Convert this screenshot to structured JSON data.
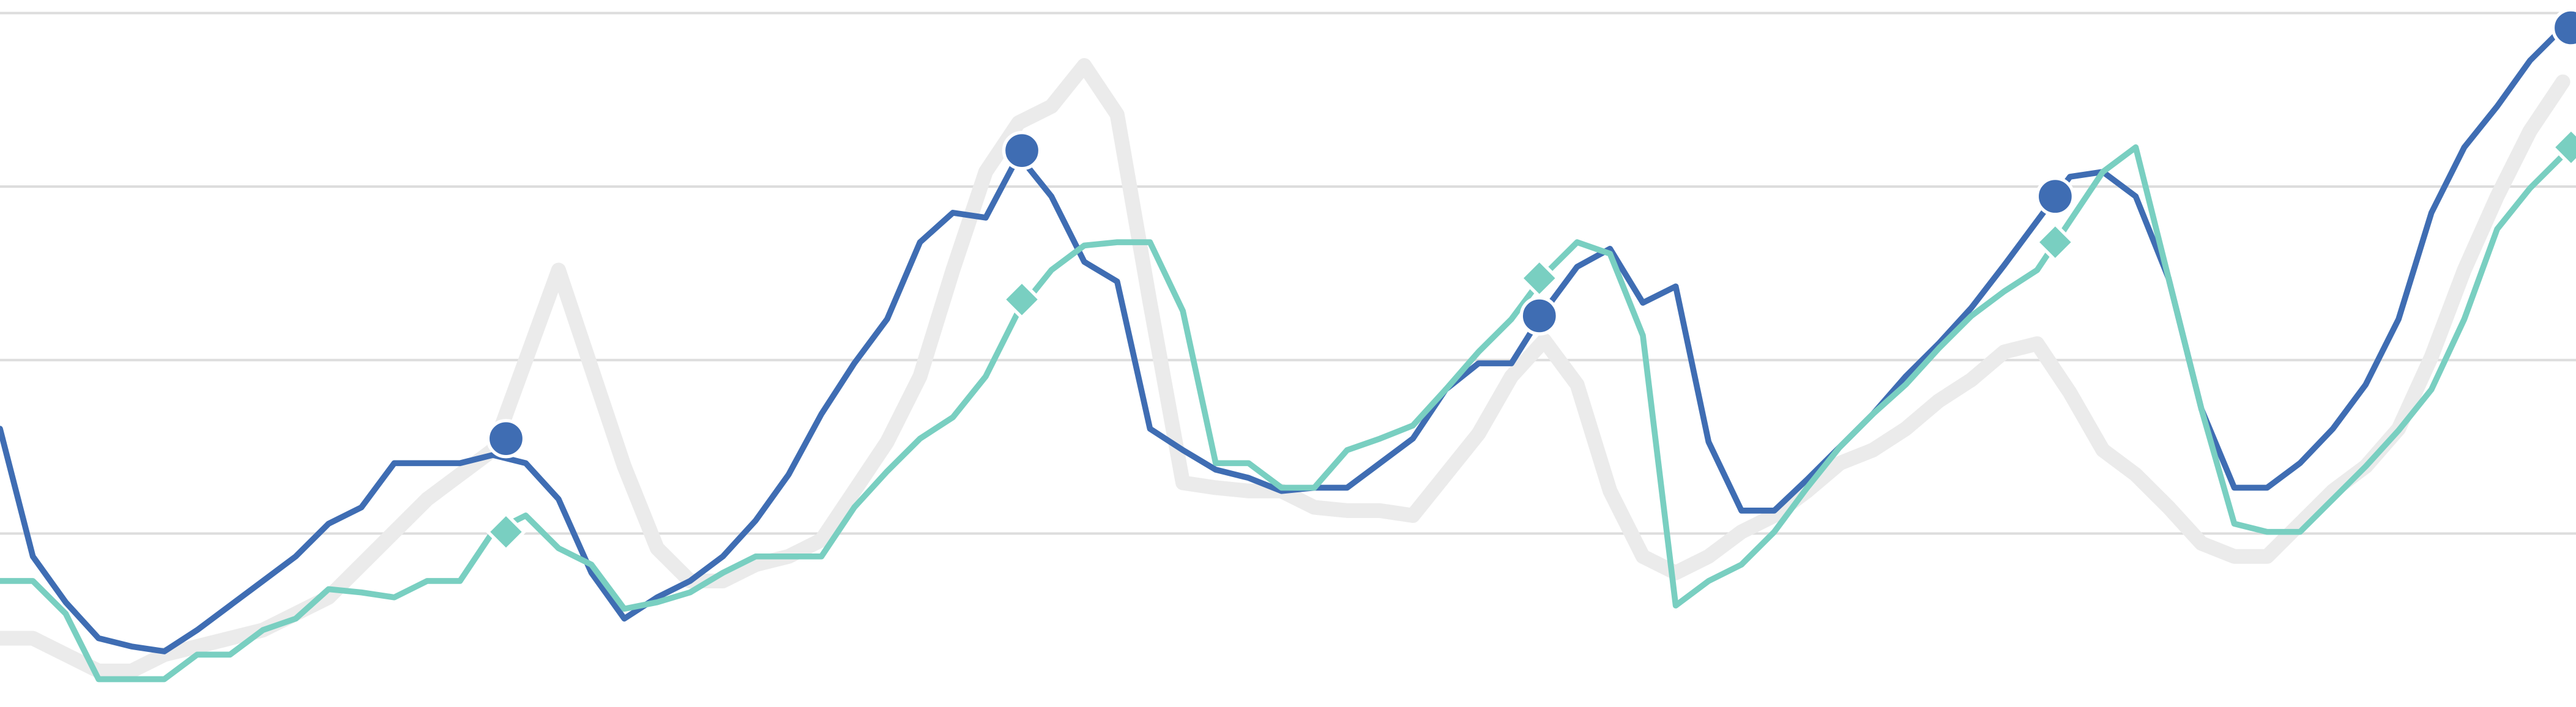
{
  "chart_data": {
    "type": "line",
    "xlim": [
      0,
      1568
    ],
    "ylim": [
      0,
      432
    ],
    "yticks": [
      106,
      212,
      318,
      424
    ],
    "grid": true,
    "x": [
      0,
      20,
      40,
      60,
      80,
      100,
      120,
      140,
      160,
      180,
      200,
      220,
      240,
      260,
      280,
      300,
      320,
      340,
      360,
      380,
      400,
      420,
      440,
      460,
      480,
      500,
      520,
      540,
      560,
      580,
      600,
      620,
      640,
      660,
      680,
      700,
      720,
      740,
      760,
      780,
      800,
      820,
      840,
      860,
      880,
      900,
      920,
      940,
      960,
      980,
      1000,
      1020,
      1040,
      1060,
      1080,
      1100,
      1120,
      1140,
      1160,
      1180,
      1200,
      1220,
      1240,
      1260,
      1280,
      1300,
      1320,
      1340,
      1360,
      1380,
      1400,
      1420,
      1440,
      1460,
      1480,
      1500,
      1520,
      1540,
      1560
    ],
    "marker_x": [
      308,
      622,
      937,
      1251,
      1565
    ],
    "series": [
      {
        "color": "#ebebeb",
        "width": 9,
        "values": [
          42,
          42,
          32,
          22,
          22,
          32,
          37,
          42,
          47,
          57,
          67,
          87,
          107,
          127,
          142,
          157,
          212,
          267,
          207,
          147,
          97,
          77,
          77,
          87,
          92,
          102,
          132,
          162,
          202,
          267,
          327,
          357,
          367,
          392,
          362,
          247,
          137,
          134,
          132,
          132,
          122,
          120,
          120,
          117,
          142,
          167,
          202,
          224,
          197,
          132,
          92,
          82,
          92,
          107,
          117,
          132,
          149,
          157,
          170,
          187,
          200,
          217,
          222,
          192,
          157,
          142,
          122,
          100,
          92,
          92,
          112,
          132,
          147,
          170,
          214,
          267,
          312,
          352,
          382
        ]
      },
      {
        "color": "#3f6db3",
        "width": 3.6,
        "marker": "circle",
        "values": [
          170,
          92,
          64,
          42,
          37,
          34,
          47,
          62,
          77,
          92,
          112,
          122,
          149,
          149,
          149,
          154,
          149,
          127,
          82,
          54,
          67,
          77,
          92,
          114,
          142,
          179,
          210,
          237,
          284,
          302,
          299,
          337,
          312,
          272,
          260,
          170,
          157,
          145,
          140,
          132,
          134,
          134,
          149,
          164,
          194,
          210,
          210,
          242,
          269,
          280,
          247,
          257,
          162,
          120,
          120,
          139,
          159,
          179,
          202,
          222,
          244,
          270,
          297,
          324,
          327,
          312,
          262,
          182,
          134,
          134,
          149,
          170,
          197,
          237,
          302,
          342,
          367,
          395,
          415
        ],
        "marker_values": [
          164,
          340,
          239,
          312,
          415
        ]
      },
      {
        "color": "#79cfc1",
        "width": 3.6,
        "marker": "diamond",
        "values": [
          77,
          77,
          57,
          17,
          17,
          17,
          32,
          32,
          47,
          54,
          72,
          70,
          67,
          77,
          77,
          107,
          117,
          97,
          87,
          60,
          64,
          70,
          82,
          92,
          92,
          92,
          122,
          144,
          164,
          177,
          202,
          242,
          267,
          282,
          284,
          284,
          242,
          149,
          149,
          134,
          134,
          157,
          164,
          172,
          194,
          217,
          237,
          264,
          284,
          277,
          227,
          62,
          77,
          87,
          107,
          134,
          159,
          179,
          197,
          219,
          239,
          254,
          267,
          297,
          327,
          342,
          262,
          182,
          112,
          107,
          107,
          127,
          147,
          169,
          194,
          237,
          292,
          317,
          337
        ],
        "marker_values": [
          107,
          249,
          262,
          284,
          342
        ]
      }
    ]
  }
}
